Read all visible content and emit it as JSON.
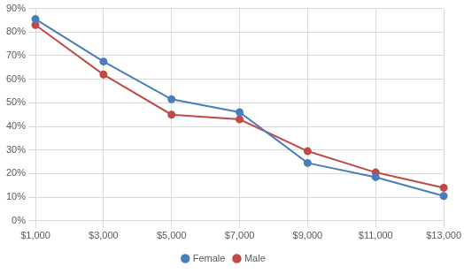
{
  "chart_data": {
    "type": "line",
    "categories": [
      "$1,000",
      "$3,000",
      "$5,000",
      "$7,000",
      "$9,000",
      "$11,000",
      "$13,000"
    ],
    "series": [
      {
        "name": "Female",
        "color": "#4a7ebb",
        "marker": "circle",
        "values": [
          85.5,
          67.5,
          51.5,
          46,
          24.5,
          18.5,
          10.5
        ]
      },
      {
        "name": "Male",
        "color": "#be4b48",
        "marker": "circle",
        "values": [
          83,
          62,
          45,
          43,
          29.5,
          20.5,
          14
        ]
      }
    ],
    "ylim": [
      0,
      90
    ],
    "yticks": [
      {
        "value": 0,
        "label": "0%"
      },
      {
        "value": 10,
        "label": "10%"
      },
      {
        "value": 20,
        "label": "20%"
      },
      {
        "value": 30,
        "label": "30%"
      },
      {
        "value": 40,
        "label": "40%"
      },
      {
        "value": 50,
        "label": "50%"
      },
      {
        "value": 60,
        "label": "60%"
      },
      {
        "value": 70,
        "label": "70%"
      },
      {
        "value": 80,
        "label": "80%"
      },
      {
        "value": 90,
        "label": "90%"
      }
    ],
    "grid": true,
    "legend": "bottom"
  }
}
